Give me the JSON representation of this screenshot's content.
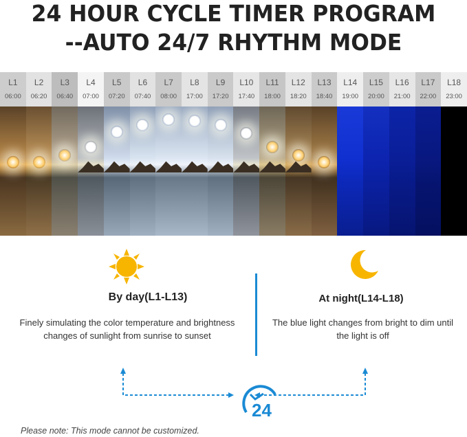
{
  "title_line1": "24 HOUR CYCLE TIMER PROGRAM",
  "title_line2": "--AUTO 24/7 RHYTHM MODE",
  "steps": [
    {
      "label": "L1",
      "time": "06:00"
    },
    {
      "label": "L2",
      "time": "06:20"
    },
    {
      "label": "L3",
      "time": "06:40"
    },
    {
      "label": "L4",
      "time": "07:00"
    },
    {
      "label": "L5",
      "time": "07:20"
    },
    {
      "label": "L6",
      "time": "07:40"
    },
    {
      "label": "L7",
      "time": "08:00"
    },
    {
      "label": "L8",
      "time": "17:00"
    },
    {
      "label": "L9",
      "time": "17:20"
    },
    {
      "label": "L10",
      "time": "17:40"
    },
    {
      "label": "L11",
      "time": "18:00"
    },
    {
      "label": "L12",
      "time": "18:20"
    },
    {
      "label": "L13",
      "time": "18:40"
    },
    {
      "label": "L14",
      "time": "19:00"
    },
    {
      "label": "L15",
      "time": "20:00"
    },
    {
      "label": "L16",
      "time": "21:00"
    },
    {
      "label": "L17",
      "time": "22:00"
    },
    {
      "label": "L18",
      "time": "23:00"
    }
  ],
  "day": {
    "icon": "sun-icon",
    "heading": "By day(L1-L13)",
    "text": "Finely simulating the color temperature and brightness changes of sunlight from sunrise to sunset"
  },
  "night": {
    "icon": "moon-icon",
    "heading": "At night(L14-L18)",
    "text": "The blue light changes from bright to dim until the light is off"
  },
  "clock_label": "24",
  "note": "Please note: This mode cannot be customized.",
  "colors": {
    "accent_blue": "#1a8ad4",
    "sun": "#f7b500",
    "title": "#222222"
  }
}
